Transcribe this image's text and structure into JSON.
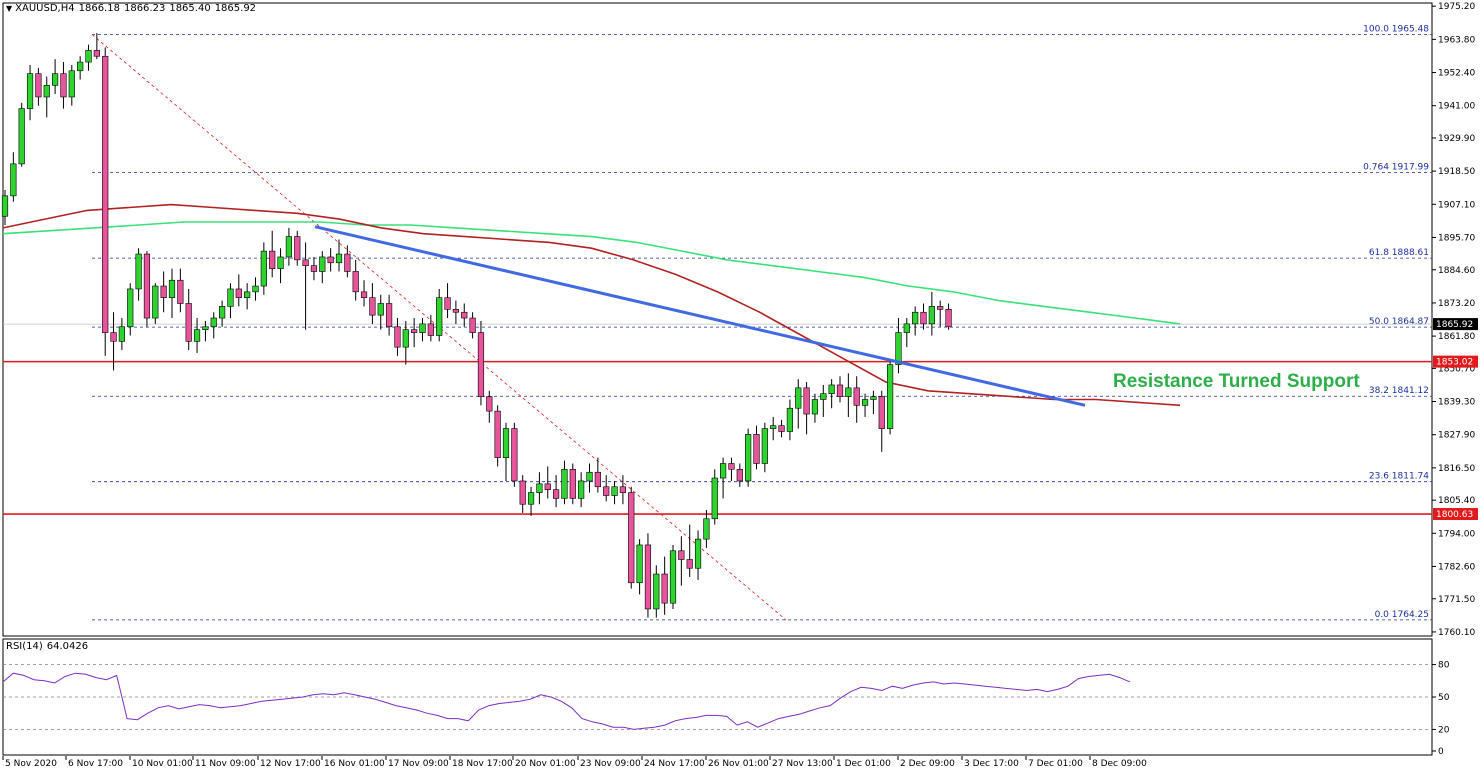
{
  "header": {
    "symbol": "XAUUSD,H4",
    "open": "1866.18",
    "high": "1866.23",
    "low": "1865.40",
    "close": "1865.92"
  },
  "rsi": {
    "label": "RSI(14)",
    "value": "64.0426"
  },
  "chart_data": [
    {
      "type": "candlestick",
      "title": "",
      "symbol": "XAUUSD,H4",
      "ylim": [
        1760.1,
        1975.2
      ],
      "y_ticks": [
        "1975.20",
        "1963.80",
        "1952.40",
        "1941.00",
        "1929.90",
        "1918.50",
        "1907.10",
        "1895.70",
        "1884.60",
        "1873.20",
        "1861.80",
        "1850.70",
        "1839.30",
        "1827.90",
        "1816.50",
        "1805.40",
        "1794.00",
        "1782.60",
        "1771.50",
        "1760.10"
      ],
      "x_ticks": [
        "5 Nov 2020",
        "6 Nov 17:00",
        "10 Nov 01:00",
        "11 Nov 09:00",
        "12 Nov 17:00",
        "16 Nov 01:00",
        "17 Nov 09:00",
        "18 Nov 17:00",
        "20 Nov 01:00",
        "23 Nov 09:00",
        "24 Nov 17:00",
        "26 Nov 01:00",
        "27 Nov 13:00",
        "1 Dec 01:00",
        "2 Dec 09:00",
        "3 Dec 17:00",
        "7 Dec 01:00",
        "8 Dec 09:00"
      ],
      "current_price": "1865.92",
      "horizontal_levels": [
        {
          "value": 1853.02,
          "label": "1853.02",
          "color": "#e31a1c"
        },
        {
          "value": 1800.63,
          "label": "1800.63",
          "color": "#e31a1c"
        }
      ],
      "fibonacci": [
        {
          "ratio": "100.0",
          "value": 1965.48,
          "label": "100.0 1965.48"
        },
        {
          "ratio": "0.764",
          "value": 1917.99,
          "label": "0.764 1917.99"
        },
        {
          "ratio": "61.8",
          "value": 1888.61,
          "label": "61.8 1888.61"
        },
        {
          "ratio": "50.0",
          "value": 1864.87,
          "label": "50.0 1864.87"
        },
        {
          "ratio": "38.2",
          "value": 1841.12,
          "label": "38.2 1841.12"
        },
        {
          "ratio": "23.6",
          "value": 1811.74,
          "label": "23.6 1811.74"
        },
        {
          "ratio": "0.0",
          "value": 1764.25,
          "label": "0.0 1764.25"
        }
      ],
      "annotation": "Resistance Turned Support",
      "colors": {
        "bull": "#2fd32f",
        "bear": "#e8549b",
        "ma_fast": "#b22222",
        "ma_slow": "#3ae07a",
        "trendline": "#4169e1",
        "level": "#e31a1c",
        "fib": "#1d2fa0"
      },
      "candles": [
        [
          1903,
          1912,
          1900,
          1910
        ],
        [
          1910,
          1925,
          1908,
          1921
        ],
        [
          1921,
          1942,
          1920,
          1940
        ],
        [
          1940,
          1955,
          1936,
          1952
        ],
        [
          1952,
          1954,
          1941,
          1944
        ],
        [
          1944,
          1951,
          1937,
          1948
        ],
        [
          1948,
          1957,
          1945,
          1952
        ],
        [
          1952,
          1956,
          1940,
          1944
        ],
        [
          1944,
          1955,
          1941,
          1953
        ],
        [
          1953,
          1958,
          1950,
          1956
        ],
        [
          1956,
          1962,
          1953,
          1960
        ],
        [
          1960,
          1966,
          1957,
          1958
        ],
        [
          1958,
          1961,
          1855,
          1863
        ],
        [
          1863,
          1870,
          1850,
          1860
        ],
        [
          1860,
          1868,
          1857,
          1865
        ],
        [
          1865,
          1880,
          1862,
          1878
        ],
        [
          1878,
          1892,
          1874,
          1890
        ],
        [
          1890,
          1891,
          1865,
          1868
        ],
        [
          1868,
          1880,
          1866,
          1879
        ],
        [
          1879,
          1884,
          1870,
          1875
        ],
        [
          1875,
          1885,
          1868,
          1881
        ],
        [
          1881,
          1885,
          1870,
          1873
        ],
        [
          1873,
          1878,
          1857,
          1860
        ],
        [
          1860,
          1868,
          1856,
          1864
        ],
        [
          1864,
          1867,
          1860,
          1865
        ],
        [
          1865,
          1870,
          1861,
          1868
        ],
        [
          1868,
          1874,
          1865,
          1872
        ],
        [
          1872,
          1880,
          1868,
          1878
        ],
        [
          1878,
          1883,
          1872,
          1875
        ],
        [
          1875,
          1880,
          1871,
          1877
        ],
        [
          1877,
          1882,
          1874,
          1879
        ],
        [
          1879,
          1894,
          1876,
          1891
        ],
        [
          1891,
          1898,
          1882,
          1885
        ],
        [
          1885,
          1892,
          1880,
          1889
        ],
        [
          1889,
          1899,
          1886,
          1896
        ],
        [
          1896,
          1898,
          1886,
          1888
        ],
        [
          1888,
          1894,
          1864,
          1886
        ],
        [
          1886,
          1889,
          1881,
          1884
        ],
        [
          1884,
          1891,
          1880,
          1889
        ],
        [
          1889,
          1892,
          1884,
          1887
        ],
        [
          1887,
          1895,
          1884,
          1890
        ],
        [
          1890,
          1893,
          1882,
          1884
        ],
        [
          1884,
          1888,
          1874,
          1877
        ],
        [
          1877,
          1881,
          1872,
          1875
        ],
        [
          1875,
          1880,
          1866,
          1869
        ],
        [
          1869,
          1876,
          1864,
          1873
        ],
        [
          1873,
          1876,
          1862,
          1865
        ],
        [
          1865,
          1868,
          1855,
          1858
        ],
        [
          1858,
          1867,
          1852,
          1864
        ],
        [
          1864,
          1868,
          1858,
          1863
        ],
        [
          1863,
          1868,
          1860,
          1866
        ],
        [
          1866,
          1869,
          1860,
          1862
        ],
        [
          1862,
          1878,
          1860,
          1875
        ],
        [
          1875,
          1880,
          1868,
          1871
        ],
        [
          1871,
          1874,
          1866,
          1870
        ],
        [
          1870,
          1873,
          1865,
          1868
        ],
        [
          1868,
          1870,
          1861,
          1863
        ],
        [
          1863,
          1867,
          1838,
          1841
        ],
        [
          1841,
          1843,
          1832,
          1836
        ],
        [
          1836,
          1838,
          1817,
          1820
        ],
        [
          1820,
          1832,
          1812,
          1830
        ],
        [
          1830,
          1832,
          1810,
          1812
        ],
        [
          1812,
          1814,
          1801,
          1804
        ],
        [
          1804,
          1810,
          1800,
          1808
        ],
        [
          1808,
          1815,
          1804,
          1811
        ],
        [
          1811,
          1817,
          1806,
          1809
        ],
        [
          1809,
          1814,
          1803,
          1806
        ],
        [
          1806,
          1819,
          1804,
          1816
        ],
        [
          1816,
          1818,
          1804,
          1806
        ],
        [
          1806,
          1815,
          1803,
          1812
        ],
        [
          1812,
          1818,
          1808,
          1815
        ],
        [
          1815,
          1820,
          1808,
          1810
        ],
        [
          1810,
          1814,
          1805,
          1807
        ],
        [
          1807,
          1812,
          1804,
          1810
        ],
        [
          1810,
          1814,
          1804,
          1808
        ],
        [
          1808,
          1810,
          1775,
          1777
        ],
        [
          1777,
          1792,
          1773,
          1790
        ],
        [
          1790,
          1794,
          1765,
          1768
        ],
        [
          1768,
          1783,
          1765,
          1780
        ],
        [
          1780,
          1786,
          1766,
          1770
        ],
        [
          1770,
          1790,
          1768,
          1788
        ],
        [
          1788,
          1793,
          1776,
          1785
        ],
        [
          1785,
          1797,
          1779,
          1782
        ],
        [
          1782,
          1795,
          1778,
          1792
        ],
        [
          1792,
          1802,
          1789,
          1799
        ],
        [
          1799,
          1816,
          1797,
          1813
        ],
        [
          1813,
          1820,
          1806,
          1818
        ],
        [
          1818,
          1820,
          1812,
          1816
        ],
        [
          1816,
          1818,
          1810,
          1812
        ],
        [
          1812,
          1830,
          1810,
          1828
        ],
        [
          1828,
          1831,
          1816,
          1818
        ],
        [
          1818,
          1832,
          1815,
          1830
        ],
        [
          1830,
          1834,
          1826,
          1831
        ],
        [
          1831,
          1833,
          1827,
          1829
        ],
        [
          1829,
          1840,
          1826,
          1837
        ],
        [
          1837,
          1847,
          1830,
          1844
        ],
        [
          1844,
          1846,
          1828,
          1835
        ],
        [
          1835,
          1842,
          1832,
          1840
        ],
        [
          1840,
          1845,
          1834,
          1842
        ],
        [
          1842,
          1847,
          1837,
          1845
        ],
        [
          1845,
          1848,
          1839,
          1841
        ],
        [
          1841,
          1849,
          1834,
          1844
        ],
        [
          1844,
          1848,
          1832,
          1838
        ],
        [
          1838,
          1842,
          1834,
          1840
        ],
        [
          1840,
          1843,
          1835,
          1841
        ],
        [
          1841,
          1843,
          1822,
          1830
        ],
        [
          1830,
          1854,
          1828,
          1852
        ],
        [
          1852,
          1868,
          1849,
          1863
        ],
        [
          1863,
          1868,
          1858,
          1866
        ],
        [
          1866,
          1872,
          1862,
          1870
        ],
        [
          1870,
          1873,
          1864,
          1866
        ],
        [
          1866,
          1877,
          1862,
          1872
        ],
        [
          1872,
          1874,
          1865,
          1871
        ],
        [
          1871,
          1873,
          1864,
          1865
        ]
      ],
      "series": [
        {
          "values": [
            1899,
            1902,
            1905,
            1906,
            1907,
            1906,
            1905,
            1904,
            1902,
            1899,
            1897,
            1896,
            1895,
            1894,
            1892,
            1888,
            1883,
            1877,
            1870,
            1862,
            1854,
            1846,
            1843,
            1842,
            1841,
            1840,
            1840,
            1839,
            1838
          ]
        },
        {
          "values": [
            1897,
            1898,
            1899,
            1900,
            1901,
            1901,
            1901,
            1901,
            1900,
            1900,
            1899,
            1898,
            1897,
            1896,
            1894,
            1891,
            1888,
            1886,
            1884,
            1882,
            1879,
            1877,
            1874,
            1872,
            1870,
            1868,
            1866
          ]
        }
      ],
      "trendline": {
        "from": [
          1899.4,
          1901.3
        ],
        "to": [
          1838,
          1836.2
        ]
      }
    },
    {
      "type": "line",
      "title": "",
      "ylim": [
        0,
        100
      ],
      "y_ticks": [
        "80",
        "50",
        "20",
        "0"
      ],
      "reference_levels": [
        80,
        50,
        20
      ],
      "values": [
        64,
        72,
        70,
        66,
        65,
        63,
        69,
        72,
        71,
        68,
        66,
        70,
        30,
        29,
        35,
        40,
        42,
        39,
        41,
        43,
        42,
        40,
        41,
        42,
        44,
        46,
        47,
        48,
        49,
        50,
        52,
        53,
        52,
        54,
        52,
        50,
        48,
        45,
        42,
        40,
        38,
        35,
        33,
        30,
        30,
        28,
        38,
        42,
        44,
        45,
        46,
        48,
        52,
        50,
        46,
        40,
        30,
        27,
        25,
        22,
        22,
        20,
        21,
        22,
        24,
        28,
        30,
        31,
        33,
        33,
        32,
        24,
        27,
        22,
        26,
        30,
        32,
        34,
        37,
        40,
        42,
        49,
        55,
        59,
        58,
        56,
        60,
        58,
        61,
        63,
        64,
        62,
        63,
        62,
        61,
        60,
        59,
        58,
        57,
        56,
        57,
        55,
        57,
        60,
        67,
        69,
        70,
        71,
        68,
        64
      ]
    }
  ]
}
